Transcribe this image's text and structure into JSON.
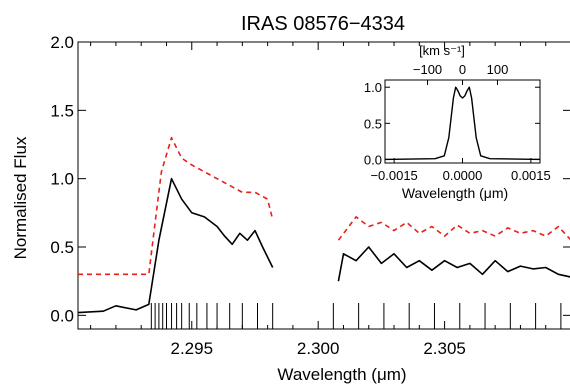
{
  "chart_data": [
    {
      "type": "line",
      "title": "IRAS 08576−4334",
      "xlabel": "Wavelength (μm)",
      "ylabel": "Normalised Flux",
      "xlim": [
        2.2905,
        2.31
      ],
      "ylim": [
        -0.1,
        2.0
      ],
      "x_ticks": [
        2.295,
        2.3,
        2.305
      ],
      "x_tick_labels": [
        "2.295",
        "2.300",
        "2.305"
      ],
      "y_ticks": [
        0.0,
        0.5,
        1.0,
        1.5,
        2.0
      ],
      "y_tick_labels": [
        "0.0",
        "0.5",
        "1.0",
        "1.5",
        "2.0"
      ],
      "grid": false,
      "series": [
        {
          "line_style": "solid",
          "color": "#000000",
          "segments": [
            {
              "x": [
                2.2905,
                2.2915,
                2.292,
                2.2928,
                2.2933,
                2.2937,
                2.2942,
                2.2946,
                2.295,
                2.2955,
                2.296,
                2.2963,
                2.2966,
                2.2969,
                2.2972,
                2.2975,
                2.2978,
                2.2982
              ],
              "y": [
                0.02,
                0.03,
                0.07,
                0.04,
                0.08,
                0.55,
                1.0,
                0.85,
                0.75,
                0.72,
                0.65,
                0.58,
                0.52,
                0.6,
                0.55,
                0.62,
                0.5,
                0.35
              ]
            },
            {
              "x": [
                2.3008,
                2.301,
                2.3015,
                2.302,
                2.3025,
                2.303,
                2.3035,
                2.304,
                2.3045,
                2.305,
                2.3055,
                2.306,
                2.3065,
                2.307,
                2.3075,
                2.308,
                2.3085,
                2.309,
                2.3095,
                2.31
              ],
              "y": [
                0.25,
                0.45,
                0.4,
                0.5,
                0.38,
                0.45,
                0.35,
                0.4,
                0.33,
                0.4,
                0.35,
                0.38,
                0.3,
                0.4,
                0.32,
                0.36,
                0.34,
                0.35,
                0.3,
                0.28
              ]
            }
          ]
        },
        {
          "line_style": "dashed",
          "color": "#e8201a",
          "segments": [
            {
              "x": [
                2.2905,
                2.2918,
                2.2933,
                2.2935,
                2.2938,
                2.2942,
                2.2946,
                2.295,
                2.2955,
                2.296,
                2.2965,
                2.297,
                2.2975,
                2.298,
                2.2982
              ],
              "y": [
                0.3,
                0.3,
                0.3,
                0.6,
                1.05,
                1.3,
                1.15,
                1.1,
                1.05,
                1.0,
                0.95,
                0.9,
                0.9,
                0.85,
                0.7
              ]
            },
            {
              "x": [
                2.3008,
                2.3015,
                2.302,
                2.3025,
                2.303,
                2.3035,
                2.304,
                2.3045,
                2.305,
                2.3055,
                2.306,
                2.3065,
                2.307,
                2.3075,
                2.308,
                2.3085,
                2.309,
                2.3095,
                2.31
              ],
              "y": [
                0.55,
                0.72,
                0.65,
                0.68,
                0.62,
                0.68,
                0.6,
                0.65,
                0.58,
                0.66,
                0.6,
                0.62,
                0.58,
                0.64,
                0.6,
                0.62,
                0.58,
                0.65,
                0.55
              ]
            }
          ]
        }
      ],
      "line_markers_x": [
        2.2934,
        2.29355,
        2.2937,
        2.29385,
        2.294,
        2.2942,
        2.2944,
        2.2946,
        2.2949,
        2.2952,
        2.2956,
        2.296,
        2.2965,
        2.297,
        2.2976,
        2.2982,
        2.3006,
        2.3016,
        2.3026,
        2.3036,
        2.3046,
        2.3056,
        2.3066,
        2.3076,
        2.3086,
        2.3096
      ]
    },
    {
      "type": "line",
      "xlabel": "Wavelength (μm)",
      "top_xlabel": "[km s⁻¹]",
      "xlim": [
        -0.0017,
        0.0017
      ],
      "ylim": [
        -0.05,
        1.1
      ],
      "x_ticks": [
        -0.0015,
        0.0,
        0.0015
      ],
      "x_tick_labels": [
        "−0.0015",
        "0.0000",
        "0.0015"
      ],
      "top_ticks": [
        -100,
        0,
        100
      ],
      "top_tick_labels": [
        "−100",
        "0",
        "100"
      ],
      "y_ticks": [
        0.0,
        0.5,
        1.0
      ],
      "y_tick_labels": [
        "0.0",
        "0.5",
        "1.0"
      ],
      "series": [
        {
          "line_style": "solid",
          "color": "#000000",
          "x": [
            -0.0017,
            -0.0006,
            -0.0004,
            -0.0003,
            -0.0002,
            -0.00015,
            -0.0001,
            -5e-05,
            0.0,
            5e-05,
            0.0001,
            0.00015,
            0.0002,
            0.0003,
            0.0004,
            0.0006,
            0.0017
          ],
          "y": [
            0.0,
            0.01,
            0.05,
            0.3,
            0.85,
            1.0,
            0.95,
            0.88,
            0.85,
            0.88,
            0.95,
            1.0,
            0.85,
            0.3,
            0.05,
            0.01,
            0.0
          ]
        }
      ]
    }
  ]
}
